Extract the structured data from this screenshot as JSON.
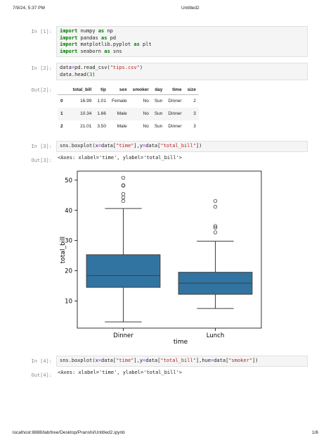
{
  "header": {
    "datetime": "7/9/24, 5:37 PM",
    "title": "Untitled2"
  },
  "footer": {
    "url": "localhost:8888/lab/tree/Desktop/Pranshi/Untitled2.ipynb",
    "page": "1/6"
  },
  "cells": {
    "c1": {
      "prompt": "In [1]:"
    },
    "c2": {
      "prompt": "In [2]:",
      "out_prompt": "Out[2]:"
    },
    "c3": {
      "prompt": "In [3]:",
      "out_prompt": "Out[3]:",
      "output": "<Axes: xlabel='time', ylabel='total_bill'>"
    },
    "c4": {
      "prompt": "In [4]:",
      "out_prompt": "Out[4]:",
      "output": "<Axes: xlabel='time', ylabel='total_bill'>"
    }
  },
  "dataframe": {
    "columns": [
      "",
      "total_bill",
      "tip",
      "sex",
      "smoker",
      "day",
      "time",
      "size"
    ],
    "rows": [
      [
        "0",
        "16.99",
        "1.01",
        "Female",
        "No",
        "Sun",
        "Dinner",
        "2"
      ],
      [
        "1",
        "10.34",
        "1.66",
        "Male",
        "No",
        "Sun",
        "Dinner",
        "3"
      ],
      [
        "2",
        "21.01",
        "3.50",
        "Male",
        "No",
        "Sun",
        "Dinner",
        "3"
      ]
    ]
  },
  "chart_data": {
    "type": "boxplot",
    "xlabel": "time",
    "ylabel": "total_bill",
    "ylim": [
      1,
      53
    ],
    "yticks": [
      10,
      20,
      30,
      40,
      50
    ],
    "categories": [
      "Dinner",
      "Lunch"
    ],
    "box_color": "#3274a1",
    "series": [
      {
        "category": "Dinner",
        "whisker_low": 3.07,
        "q1": 14.5,
        "median": 18.4,
        "q3": 25.3,
        "whisker_high": 40.6,
        "outliers": [
          43.1,
          44.3,
          45.4,
          48.2,
          48.3,
          48.3,
          50.8
        ]
      },
      {
        "category": "Lunch",
        "whisker_low": 7.5,
        "q1": 12.2,
        "median": 15.9,
        "q3": 19.5,
        "whisker_high": 29.8,
        "outliers": [
          32.7,
          34.3,
          34.8,
          41.2,
          43.1
        ]
      }
    ]
  }
}
